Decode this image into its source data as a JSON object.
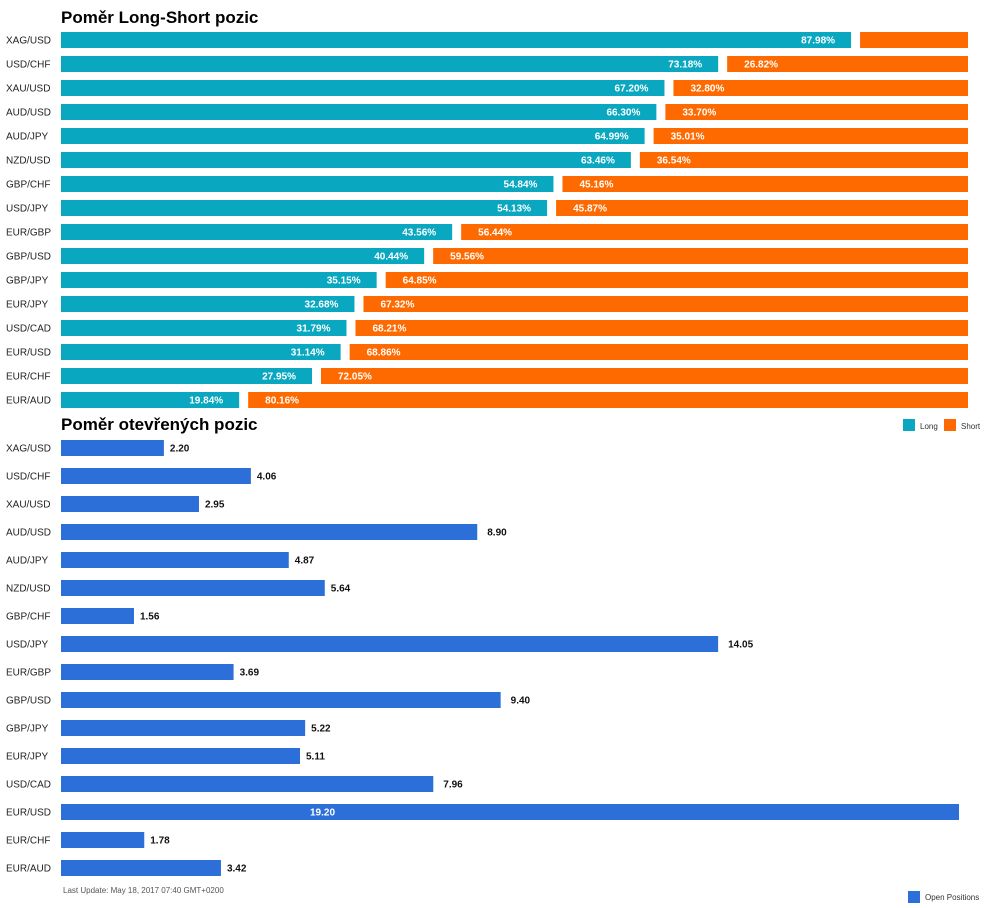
{
  "colors": {
    "long": "#0aa7c0",
    "short": "#ff6a00",
    "open": "#2d6fd8"
  },
  "chart_data": [
    {
      "type": "bar",
      "title": "Poměr Long-Short pozic",
      "stacked": true,
      "orientation": "horizontal",
      "categories": [
        "XAG/USD",
        "USD/CHF",
        "XAU/USD",
        "AUD/USD",
        "AUD/JPY",
        "NZD/USD",
        "GBP/CHF",
        "USD/JPY",
        "EUR/GBP",
        "GBP/USD",
        "GBP/JPY",
        "EUR/JPY",
        "USD/CAD",
        "EUR/USD",
        "EUR/CHF",
        "EUR/AUD"
      ],
      "series": [
        {
          "name": "Long",
          "values": [
            87.98,
            73.18,
            67.2,
            66.3,
            64.99,
            63.46,
            54.84,
            54.13,
            43.56,
            40.44,
            35.15,
            32.68,
            31.79,
            31.14,
            27.95,
            19.84
          ],
          "labels": [
            "87.98%",
            "73.18%",
            "67.20%",
            "66.30%",
            "64.99%",
            "63.46%",
            "54.84%",
            "54.13%",
            "43.56%",
            "40.44%",
            "35.15%",
            "32.68%",
            "31.79%",
            "31.14%",
            "27.95%",
            "19.84%"
          ]
        },
        {
          "name": "Short",
          "values": [
            12.02,
            26.82,
            32.8,
            33.7,
            35.01,
            36.54,
            45.16,
            45.87,
            56.44,
            59.56,
            64.85,
            67.32,
            68.21,
            68.86,
            72.05,
            80.16
          ],
          "labels": [
            "",
            "26.82%",
            "32.80%",
            "33.70%",
            "35.01%",
            "36.54%",
            "45.16%",
            "45.87%",
            "56.44%",
            "59.56%",
            "64.85%",
            "67.32%",
            "68.21%",
            "68.86%",
            "72.05%",
            "80.16%"
          ]
        }
      ],
      "legend": "top-right",
      "xlim": [
        0,
        100
      ],
      "grid": false
    },
    {
      "type": "bar",
      "title": "Poměr otevřených pozic",
      "orientation": "horizontal",
      "categories": [
        "XAG/USD",
        "USD/CHF",
        "XAU/USD",
        "AUD/USD",
        "AUD/JPY",
        "NZD/USD",
        "GBP/CHF",
        "USD/JPY",
        "EUR/GBP",
        "GBP/USD",
        "GBP/JPY",
        "EUR/JPY",
        "USD/CAD",
        "EUR/USD",
        "EUR/CHF",
        "EUR/AUD"
      ],
      "series": [
        {
          "name": "Open Positions",
          "values": [
            2.2,
            4.06,
            2.95,
            8.9,
            4.87,
            5.64,
            1.56,
            14.05,
            3.69,
            9.4,
            5.22,
            5.11,
            7.96,
            19.2,
            1.78,
            3.42
          ],
          "labels": [
            "2.20",
            "4.06",
            "2.95",
            "8.90",
            "4.87",
            "5.64",
            "1.56",
            "14.05",
            "3.69",
            "9.40",
            "5.22",
            "5.11",
            "7.96",
            "19.20",
            "1.78",
            "3.42"
          ]
        }
      ],
      "legend": "bottom-right",
      "xlim": [
        0,
        19.2
      ],
      "grid": false
    }
  ],
  "footer": {
    "last_update": "Last Update: May 18, 2017 07:40 GMT+0200"
  }
}
